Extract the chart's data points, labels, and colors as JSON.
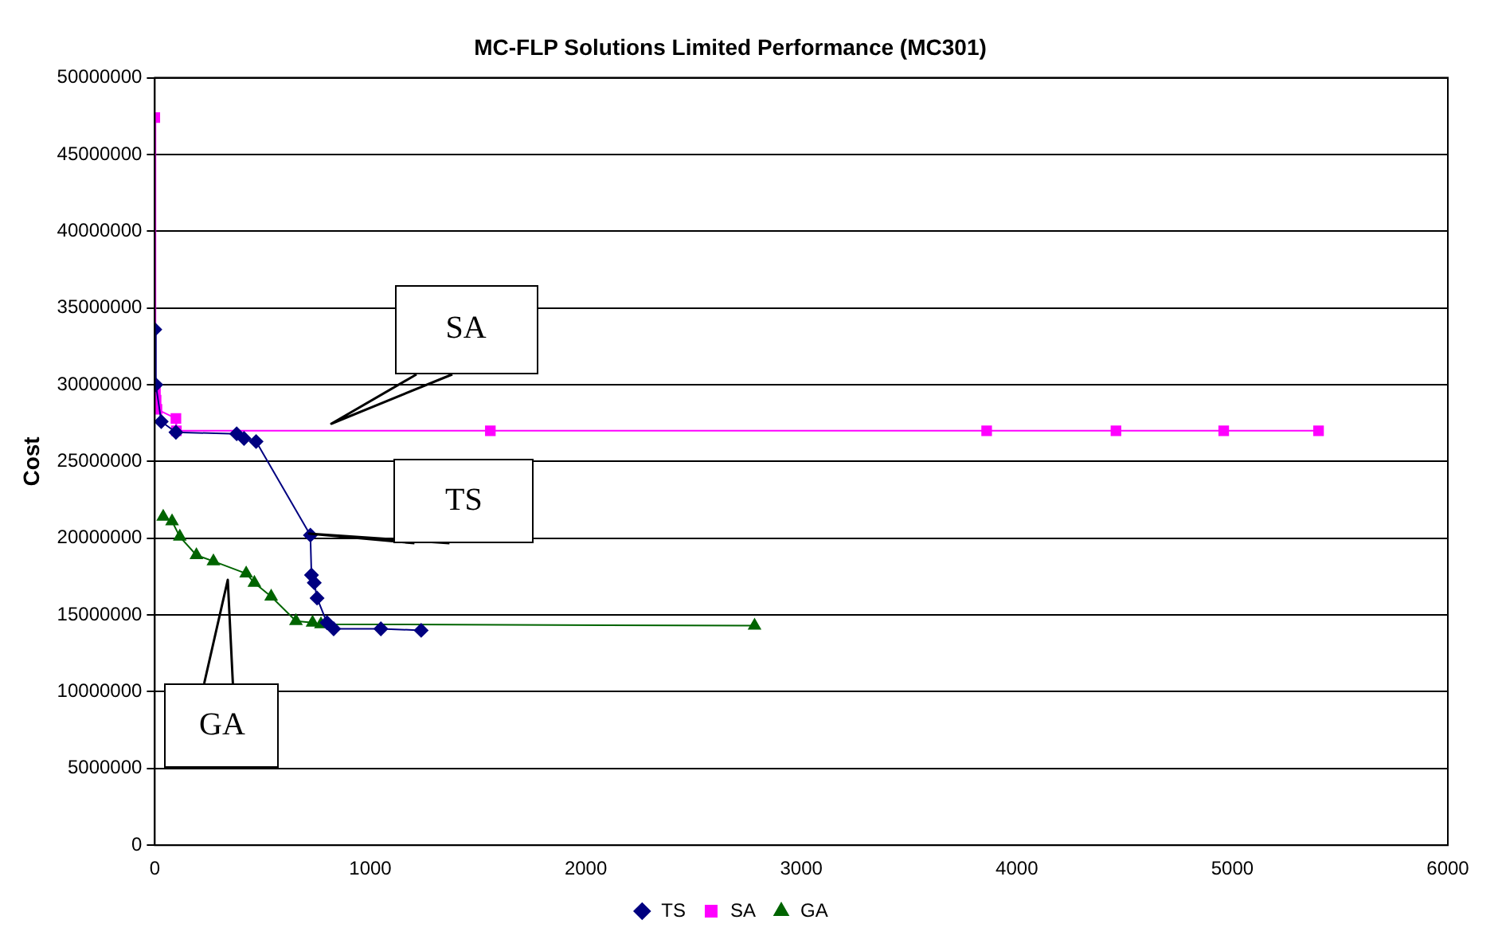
{
  "chart_data": {
    "type": "line",
    "title": "MC-FLP Solutions Limited Performance (MC301)",
    "ylabel": "Cost",
    "series": [
      {
        "name": "TS",
        "color": "#000080",
        "marker": "diamond",
        "x": [
          0,
          5,
          30,
          98,
          380,
          414,
          470,
          722,
          727,
          740,
          753,
          799,
          830,
          1049,
          1236
        ],
        "values": [
          33600000,
          30000000,
          27600000,
          26900000,
          26800000,
          26500000,
          26300000,
          20200000,
          17600000,
          17100000,
          16100000,
          14500000,
          14100000,
          14100000,
          14000000
        ]
      },
      {
        "name": "SA",
        "color": "#ff00ff",
        "marker": "square",
        "x": [
          0,
          3,
          6,
          10,
          98,
          100,
          1557,
          3860,
          4460,
          4960,
          5400
        ],
        "values": [
          47400000,
          29500000,
          29000000,
          28400000,
          27800000,
          27000000,
          27000000,
          27000000,
          27000000,
          27000000,
          27000000
        ]
      },
      {
        "name": "GA",
        "color": "#006400",
        "marker": "triangle",
        "x": [
          39,
          80,
          116,
          193,
          272,
          424,
          462,
          540,
          655,
          732,
          771,
          2783
        ],
        "values": [
          21400000,
          21100000,
          20100000,
          18900000,
          18500000,
          17700000,
          17100000,
          16200000,
          14600000,
          14500000,
          14400000,
          14300000
        ]
      }
    ],
    "xlim": [
      0,
      6000
    ],
    "xticks": [
      0,
      1000,
      2000,
      3000,
      4000,
      5000,
      6000
    ],
    "ylim": [
      0,
      50000000
    ],
    "yticks": [
      0,
      5000000,
      10000000,
      15000000,
      20000000,
      25000000,
      30000000,
      35000000,
      40000000,
      45000000,
      50000000
    ],
    "grid": "y",
    "legend": "bottom",
    "line_style": "solid",
    "annotations": [
      "SA",
      "TS",
      "GA"
    ]
  }
}
